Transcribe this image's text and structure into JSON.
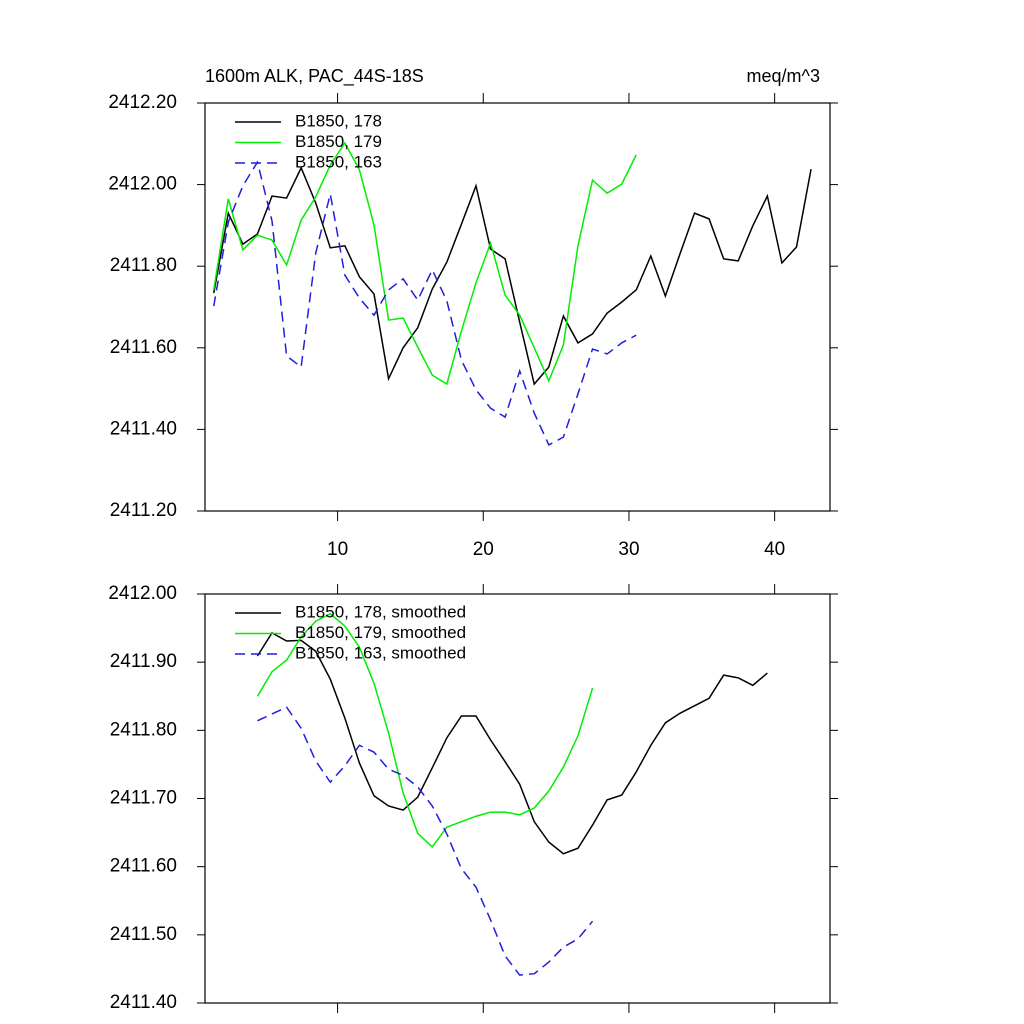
{
  "chart_data": [
    {
      "type": "line",
      "title": "1600m ALK, PAC_44S-18S",
      "units": "meq/m^3",
      "xlim": [
        0.9,
        43.8
      ],
      "xticks": [
        10,
        20,
        30,
        40
      ],
      "xtick_labels": true,
      "ylim": [
        2411.2,
        2412.2
      ],
      "yticks": [
        {
          "value": 2411.2,
          "label": "2411.20"
        },
        {
          "value": 2411.4,
          "label": "2411.40"
        },
        {
          "value": 2411.6,
          "label": "2411.60"
        },
        {
          "value": 2411.8,
          "label": "2411.80"
        },
        {
          "value": 2412.0,
          "label": "2412.00"
        },
        {
          "value": 2412.2,
          "label": "2412.20"
        }
      ],
      "legend": "upper left",
      "series": [
        {
          "name": "B1850, 178",
          "color": "#000000",
          "dash": false,
          "x": [
            1.5,
            2.5,
            3.5,
            4.5,
            5.5,
            6.5,
            7.5,
            8.5,
            9.5,
            10.5,
            11.5,
            12.5,
            13.5,
            14.5,
            15.5,
            16.5,
            17.5,
            18.5,
            19.5,
            20.5,
            21.5,
            22.5,
            23.5,
            24.5,
            25.5,
            26.5,
            27.5,
            28.5,
            29.5,
            30.5,
            31.5,
            32.5,
            33.5,
            34.5,
            35.5,
            36.5,
            37.5,
            38.5,
            39.5,
            40.5,
            41.5,
            42.5
          ],
          "values": [
            2411.734,
            2411.93,
            2411.854,
            2411.879,
            2411.972,
            2411.967,
            2412.041,
            2411.955,
            2411.845,
            2411.85,
            2411.774,
            2411.732,
            2411.524,
            2411.6,
            2411.649,
            2411.744,
            2411.81,
            2411.903,
            2411.997,
            2411.842,
            2411.818,
            2411.663,
            2411.511,
            2411.553,
            2411.678,
            2411.612,
            2411.634,
            2411.685,
            2411.712,
            2411.742,
            2411.825,
            2411.727,
            2411.83,
            2411.93,
            2411.916,
            2411.818,
            2411.813,
            2411.899,
            2411.972,
            2411.808,
            2411.847,
            2412.038
          ]
        },
        {
          "name": "B1850, 179",
          "color": "#00ee00",
          "dash": false,
          "x": [
            1.5,
            2.5,
            3.5,
            4.5,
            5.5,
            6.5,
            7.5,
            8.5,
            9.5,
            10.5,
            11.5,
            12.5,
            13.5,
            14.5,
            15.5,
            16.5,
            17.5,
            18.5,
            19.5,
            20.5,
            21.5,
            22.5,
            23.5,
            24.5,
            25.5,
            26.5,
            27.5,
            28.5,
            29.5,
            30.5
          ],
          "values": [
            2411.742,
            2411.965,
            2411.84,
            2411.876,
            2411.864,
            2411.803,
            2411.913,
            2411.97,
            2412.048,
            2412.102,
            2412.036,
            2411.901,
            2411.668,
            2411.673,
            2411.602,
            2411.533,
            2411.511,
            2411.641,
            2411.759,
            2411.857,
            2411.729,
            2411.68,
            2411.6,
            2411.519,
            2411.607,
            2411.85,
            2412.011,
            2411.979,
            2412.001,
            2412.073
          ]
        },
        {
          "name": "B1850, 163",
          "color": "#1f1fdd",
          "dash": true,
          "x": [
            1.5,
            2.5,
            3.5,
            4.5,
            5.5,
            6.5,
            7.5,
            8.5,
            9.5,
            10.5,
            11.5,
            12.5,
            13.5,
            14.5,
            15.5,
            16.5,
            17.5,
            18.5,
            19.5,
            20.5,
            21.5,
            22.5,
            23.5,
            24.5,
            25.5,
            26.5,
            27.5,
            28.5,
            29.5,
            30.5
          ],
          "values": [
            2411.702,
            2411.908,
            2411.997,
            2412.055,
            2411.911,
            2411.58,
            2411.553,
            2411.832,
            2411.977,
            2411.778,
            2411.722,
            2411.68,
            2411.742,
            2411.769,
            2411.717,
            2411.791,
            2411.715,
            2411.57,
            2411.497,
            2411.452,
            2411.43,
            2411.543,
            2411.44,
            2411.362,
            2411.381,
            2411.487,
            2411.597,
            2411.585,
            2411.612,
            2411.631
          ]
        }
      ]
    },
    {
      "type": "line",
      "xlim": [
        0.9,
        43.8
      ],
      "xticks": [
        10,
        20,
        30,
        40
      ],
      "xtick_labels": false,
      "ylim": [
        2411.4,
        2412.0
      ],
      "yticks": [
        {
          "value": 2411.4,
          "label": "2411.40"
        },
        {
          "value": 2411.5,
          "label": "2411.50"
        },
        {
          "value": 2411.6,
          "label": "2411.60"
        },
        {
          "value": 2411.7,
          "label": "2411.70"
        },
        {
          "value": 2411.8,
          "label": "2411.80"
        },
        {
          "value": 2411.9,
          "label": "2411.90"
        },
        {
          "value": 2412.0,
          "label": "2412.00"
        }
      ],
      "legend": "upper left",
      "series": [
        {
          "name": "B1850, 178, smoothed",
          "color": "#000000",
          "dash": false,
          "x": [
            4.5,
            5.5,
            6.5,
            7.5,
            8.5,
            9.5,
            10.5,
            11.5,
            12.5,
            13.5,
            14.5,
            15.5,
            16.5,
            17.5,
            18.5,
            19.5,
            20.5,
            21.5,
            22.5,
            23.5,
            24.5,
            25.5,
            26.5,
            27.5,
            28.5,
            29.5,
            30.5,
            31.5,
            32.5,
            33.5,
            34.5,
            35.5,
            36.5,
            37.5,
            38.5,
            39.5
          ],
          "values": [
            2411.909,
            2411.943,
            2411.931,
            2411.932,
            2411.916,
            2411.875,
            2411.818,
            2411.752,
            2411.704,
            2411.689,
            2411.683,
            2411.702,
            2411.745,
            2411.789,
            2411.821,
            2411.821,
            2411.786,
            2411.754,
            2411.721,
            2411.666,
            2411.636,
            2411.619,
            2411.627,
            2411.661,
            2411.698,
            2411.705,
            2411.739,
            2411.778,
            2411.811,
            2411.825,
            2411.836,
            2411.847,
            2411.881,
            2411.877,
            2411.866,
            2411.884
          ]
        },
        {
          "name": "B1850, 179, smoothed",
          "color": "#00ee00",
          "dash": false,
          "x": [
            4.5,
            5.5,
            6.5,
            7.5,
            8.5,
            9.5,
            10.5,
            11.5,
            12.5,
            13.5,
            14.5,
            15.5,
            16.5,
            17.5,
            18.5,
            19.5,
            20.5,
            21.5,
            22.5,
            23.5,
            24.5,
            25.5,
            26.5,
            27.5
          ],
          "values": [
            2411.85,
            2411.886,
            2411.903,
            2411.937,
            2411.96,
            2411.971,
            2411.953,
            2411.922,
            2411.869,
            2411.796,
            2411.708,
            2411.649,
            2411.629,
            2411.658,
            2411.666,
            2411.674,
            2411.68,
            2411.68,
            2411.676,
            2411.686,
            2411.711,
            2411.746,
            2411.792,
            2411.862
          ]
        },
        {
          "name": "B1850, 163, smoothed",
          "color": "#1f1fdd",
          "dash": true,
          "x": [
            4.5,
            5.5,
            6.5,
            7.5,
            8.5,
            9.5,
            10.5,
            11.5,
            12.5,
            13.5,
            14.5,
            15.5,
            16.5,
            17.5,
            18.5,
            19.5,
            20.5,
            21.5,
            22.5,
            23.5,
            24.5,
            25.5,
            26.5,
            27.5
          ],
          "values": [
            2411.814,
            2411.824,
            2411.834,
            2411.803,
            2411.755,
            2411.724,
            2411.748,
            2411.778,
            2411.768,
            2411.743,
            2411.734,
            2411.717,
            2411.689,
            2411.648,
            2411.597,
            2411.57,
            2411.522,
            2411.469,
            2411.441,
            2411.443,
            2411.46,
            2411.482,
            2411.494,
            2411.52
          ]
        }
      ]
    }
  ]
}
